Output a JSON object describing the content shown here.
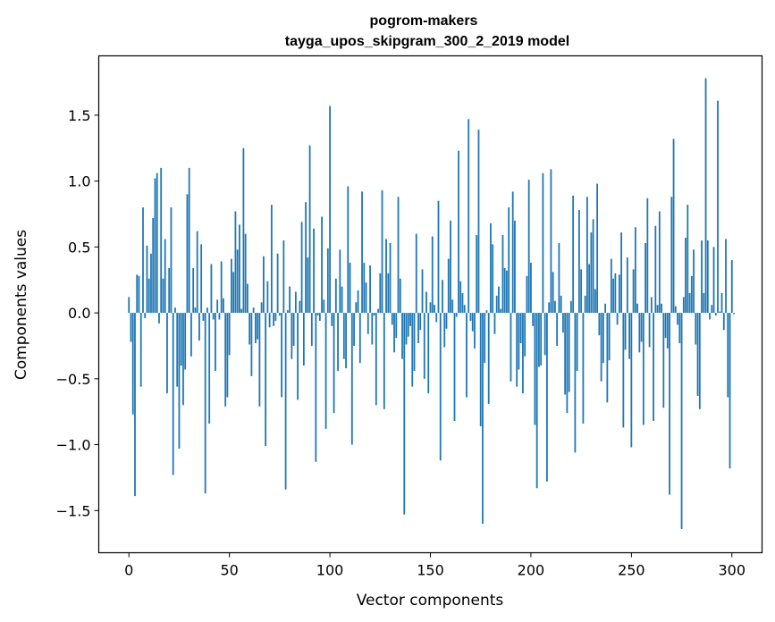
{
  "chart_data": {
    "type": "bar",
    "title": "pogrom-makers",
    "subtitle": "tayga_upos_skipgram_300_2_2019 model",
    "xlabel": "Vector components",
    "ylabel": "Components values",
    "xlim": [
      -15,
      315
    ],
    "ylim": [
      -1.82,
      1.95
    ],
    "xticks": [
      0,
      50,
      100,
      150,
      200,
      250,
      300
    ],
    "yticks": [
      -1.5,
      -1.0,
      -0.5,
      0.0,
      0.5,
      1.0,
      1.5
    ],
    "ytick_labels": [
      "−1.5",
      "−1.0",
      "−0.5",
      "0.0",
      "0.5",
      "1.0",
      "1.5"
    ],
    "bar_color": "#1f77b4",
    "grid": false,
    "values": [
      0.12,
      -0.22,
      -0.77,
      -1.39,
      0.29,
      0.28,
      -0.56,
      0.8,
      -0.04,
      0.51,
      0.26,
      0.45,
      0.72,
      1.02,
      1.06,
      -0.08,
      1.1,
      0.26,
      0.56,
      -0.61,
      0.34,
      0.8,
      -1.23,
      0.04,
      -0.56,
      -1.03,
      -0.4,
      -0.7,
      -0.43,
      0.9,
      1.1,
      -0.33,
      0.34,
      0.04,
      0.62,
      -0.21,
      0.52,
      -0.06,
      -1.37,
      0.04,
      -0.84,
      0.37,
      -0.05,
      -0.44,
      0.1,
      -0.05,
      0.39,
      0.11,
      -0.71,
      -0.64,
      -0.32,
      0.41,
      0.31,
      0.77,
      0.48,
      0.67,
      0.03,
      1.25,
      0.6,
      0.22,
      -0.24,
      -0.48,
      0.04,
      -0.23,
      -0.2,
      -0.71,
      0.08,
      0.43,
      -1.01,
      0.24,
      -0.11,
      0.82,
      -0.1,
      -0.06,
      0.45,
      -0.02,
      -0.64,
      0.55,
      -1.34,
      0.02,
      0.2,
      -0.35,
      -0.25,
      0.16,
      -0.66,
      0.09,
      0.69,
      -0.4,
      0.84,
      0.42,
      1.27,
      -0.25,
      0.64,
      -1.13,
      -0.02,
      -0.06,
      0.73,
      0.1,
      -0.88,
      0.49,
      1.57,
      -0.1,
      -0.76,
      0.26,
      -0.44,
      0.48,
      0.2,
      -0.35,
      -0.42,
      0.96,
      0.38,
      -1.0,
      -0.25,
      0.08,
      0.17,
      -0.38,
      0.92,
      0.38,
      0.23,
      -0.16,
      0.36,
      -0.24,
      -0.02,
      -0.7,
      0.03,
      0.3,
      0.93,
      -0.73,
      0.56,
      0.3,
      0.53,
      -0.09,
      -0.3,
      -0.19,
      0.88,
      0.26,
      -0.35,
      -1.53,
      -0.24,
      -0.18,
      -0.1,
      -0.56,
      -0.44,
      0.6,
      -0.23,
      -0.13,
      0.33,
      -0.5,
      0.16,
      -0.61,
      0.08,
      0.58,
      0.06,
      -0.07,
      0.85,
      -1.12,
      0.25,
      -0.26,
      -0.12,
      0.41,
      0.7,
      0.1,
      -0.82,
      -0.03,
      1.23,
      0.24,
      0.15,
      0.06,
      -0.64,
      1.47,
      -0.06,
      -0.14,
      -0.27,
      0.59,
      1.39,
      -0.86,
      -1.6,
      -0.38,
      0.02,
      -0.69,
      0.68,
      0.52,
      -0.16,
      0.13,
      0.2,
      0.03,
      0.59,
      0.34,
      0.32,
      0.8,
      -0.52,
      0.92,
      0.7,
      -0.56,
      -0.43,
      -0.23,
      -0.61,
      -0.33,
      0.28,
      1.01,
      0.38,
      -0.1,
      -0.85,
      -1.33,
      -0.41,
      -0.4,
      1.06,
      -0.32,
      -1.28,
      0.08,
      1.09,
      0.31,
      0.09,
      -0.25,
      0.53,
      0.13,
      -0.15,
      -0.62,
      -0.76,
      -0.6,
      0.09,
      0.89,
      -1.06,
      -0.44,
      0.78,
      0.33,
      -0.84,
      0.13,
      0.88,
      0.37,
      0.61,
      0.71,
      0.18,
      0.98,
      -0.17,
      -0.52,
      -0.38,
      0.07,
      -0.68,
      -0.36,
      0.41,
      0.26,
      0.3,
      -0.09,
      0.29,
      0.61,
      -0.87,
      -0.28,
      0.42,
      -0.35,
      -1.02,
      0.33,
      0.65,
      0.07,
      -0.3,
      -0.22,
      -0.85,
      0.53,
      0.87,
      -0.26,
      0.12,
      -0.82,
      0.66,
      0.06,
      0.77,
      0.07,
      -0.72,
      -0.19,
      -0.27,
      -1.38,
      0.88,
      1.32,
      0.05,
      -0.09,
      -0.23,
      -1.64,
      0.12,
      0.57,
      0.82,
      0.15,
      0.28,
      0.48,
      -0.24,
      -0.63,
      -0.73,
      0.55,
      0.15,
      1.78,
      0.55,
      -0.05,
      0.06,
      0.5,
      -0.02,
      1.61,
      0.01,
      0.15,
      -0.13,
      0.56,
      -0.64,
      -1.18,
      0.4,
      -0.01
    ]
  }
}
